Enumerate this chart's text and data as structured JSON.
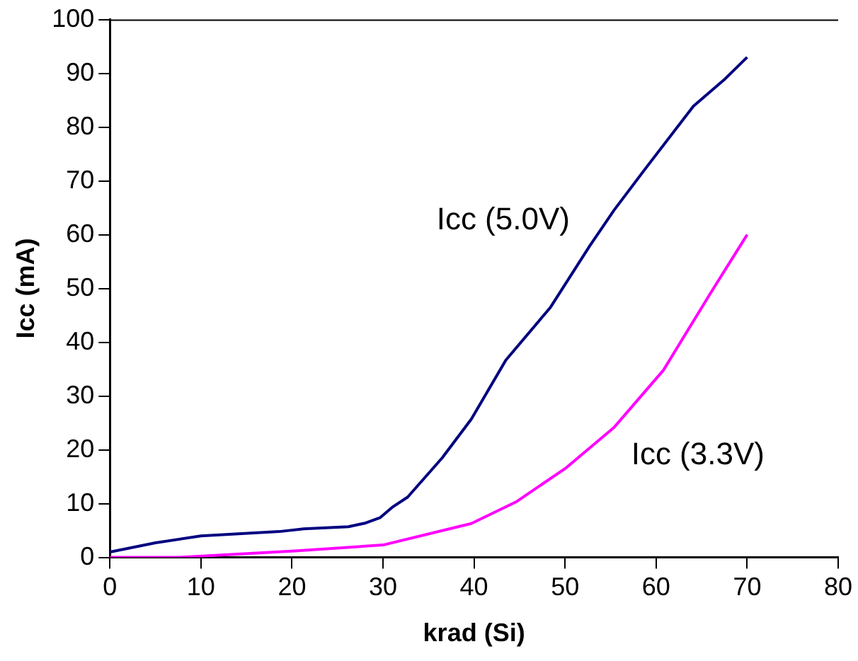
{
  "chart_data": {
    "type": "line",
    "xlabel": "krad (Si)",
    "ylabel": "Icc (mA)",
    "xlim": [
      0,
      80
    ],
    "xticks": [
      0,
      10,
      20,
      30,
      40,
      50,
      60,
      70,
      80
    ],
    "ylim": [
      0,
      100
    ],
    "yticks": [
      0,
      10,
      20,
      30,
      40,
      50,
      60,
      70,
      80,
      90,
      100
    ],
    "grid": false,
    "legend": false,
    "marker": "none",
    "line_style": "solid",
    "series": [
      {
        "name": "Icc (5.0V)",
        "color": "#000080",
        "x": [
          0,
          5,
          10,
          18.6,
          21.3,
          26.2,
          28.1,
          29.7,
          31,
          32.7,
          36.5,
          39.7,
          43.5,
          48.4,
          52.7,
          55.4,
          58.7,
          64.1,
          67.6,
          70
        ],
        "values": [
          1,
          2.7,
          4,
          4.8,
          5.3,
          5.7,
          6.4,
          7.4,
          9.3,
          11.2,
          18.5,
          25.7,
          36.7,
          46.5,
          57.9,
          64.6,
          72,
          83.9,
          89,
          93
        ]
      },
      {
        "name": "Icc (3.3V)",
        "color": "#ff00ff",
        "x": [
          0,
          7.6,
          20.3,
          30,
          39.7,
          44.6,
          50,
          55.4,
          60.8,
          66,
          70
        ],
        "values": [
          0,
          0,
          1.2,
          2.3,
          6.3,
          10.3,
          16.5,
          24.2,
          34.8,
          49.2,
          60
        ]
      }
    ]
  }
}
